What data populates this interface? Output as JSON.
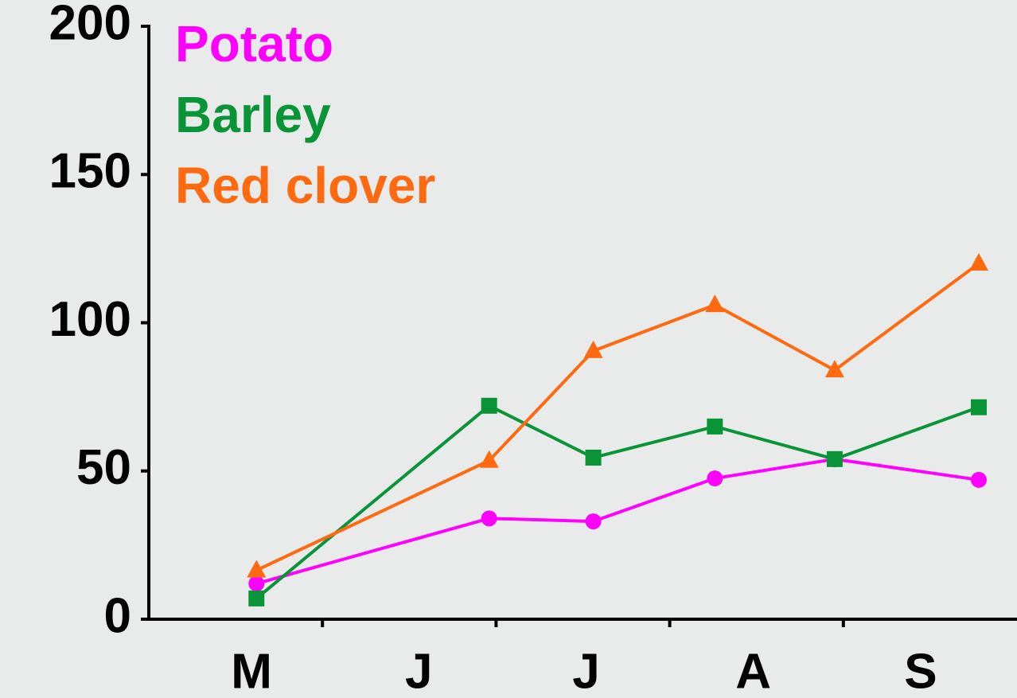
{
  "chart_data": {
    "type": "line",
    "categories": [
      "M",
      "J",
      "J",
      "A",
      "S"
    ],
    "xlim": [
      0,
      5
    ],
    "ylim": [
      0,
      200
    ],
    "yticks": [
      0,
      50,
      100,
      150,
      200
    ],
    "series": [
      {
        "name": "Potato",
        "color": "#ff00ff",
        "marker": "circle",
        "x": [
          0.62,
          1.96,
          2.56,
          3.26,
          3.95,
          4.78
        ],
        "values": [
          12,
          34,
          33,
          47.5,
          54,
          47
        ]
      },
      {
        "name": "Barley",
        "color": "#0a9438",
        "marker": "square",
        "x": [
          0.62,
          1.96,
          2.56,
          3.26,
          3.95,
          4.78
        ],
        "values": [
          7,
          72,
          54.5,
          65,
          54,
          71.5
        ]
      },
      {
        "name": "Red clover",
        "color": "#ff6a10",
        "marker": "triangle",
        "x": [
          0.62,
          1.96,
          2.56,
          3.26,
          3.95,
          4.78
        ],
        "values": [
          16.5,
          53.5,
          90.5,
          106,
          84,
          120
        ]
      }
    ]
  }
}
